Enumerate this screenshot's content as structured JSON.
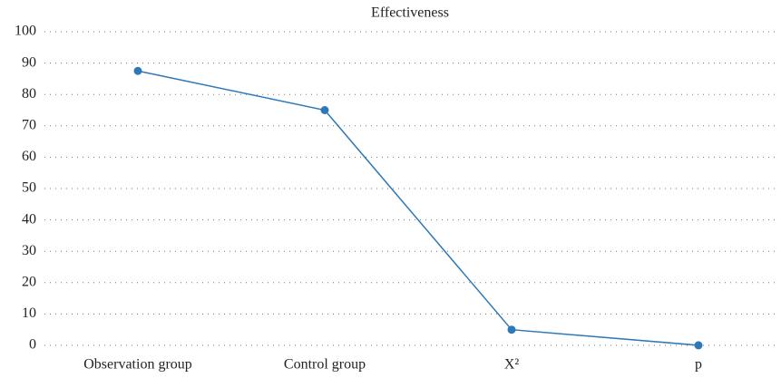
{
  "chart_data": {
    "type": "line",
    "title": "Effectiveness",
    "categories": [
      "Observation group",
      "Control group",
      "X²",
      "p"
    ],
    "series": [
      {
        "name": "Effectiveness",
        "color": "#2e78b7",
        "values": [
          87.5,
          75,
          5,
          0.03
        ]
      }
    ],
    "ylim": [
      0,
      100
    ],
    "yticks": [
      0,
      10,
      20,
      30,
      40,
      50,
      60,
      70,
      80,
      90,
      100
    ],
    "grid": true
  }
}
